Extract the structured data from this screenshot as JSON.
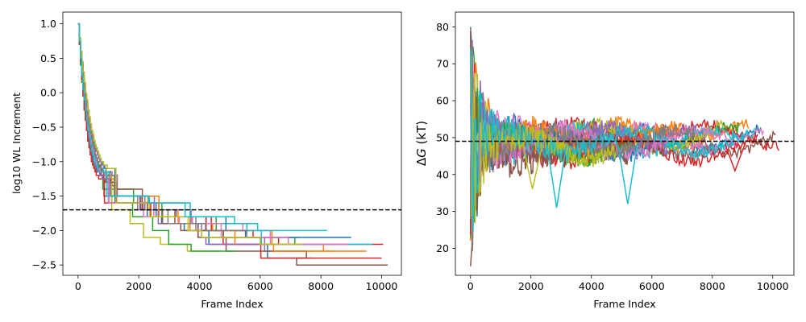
{
  "chart_data": [
    {
      "type": "line",
      "title": "",
      "xlabel": "Frame Index",
      "ylabel": "log10 WL Increment",
      "xlim": [
        -500,
        10650
      ],
      "ylim": [
        -2.65,
        1.17
      ],
      "xticks": [
        0,
        2000,
        4000,
        6000,
        8000,
        10000
      ],
      "xtick_labels": [
        "0",
        "2000",
        "4000",
        "6000",
        "8000",
        "10000"
      ],
      "yticks": [
        1.0,
        0.5,
        0.0,
        -0.5,
        -1.0,
        -1.5,
        -2.0,
        -2.5
      ],
      "ytick_labels": [
        "1.0",
        "0.5",
        "0.0",
        "−0.5",
        "−1.0",
        "−1.5",
        "−2.0",
        "−2.5"
      ],
      "reference_line": {
        "y": -1.7,
        "style": "dashed",
        "color": "#000000"
      },
      "colors": [
        "#1f77b4",
        "#ff7f0e",
        "#2ca02c",
        "#d62728",
        "#9467bd",
        "#8c564b",
        "#e377c2",
        "#7f7f7f",
        "#bcbd22",
        "#17becf"
      ],
      "series_note": "approx. 20 step-decay series (one per color cycle) that drop from 1.0 toward about -1.2 by frame 1000 and stair-step down to between -1.9 and -2.5 by frames 4500-10200",
      "series": [
        {
          "color": "#1f77b4",
          "end_x": 7700,
          "end_y": -2.4,
          "steps": [
            -1.6,
            -1.8,
            -1.9,
            -2.0,
            -2.2,
            -2.4
          ]
        },
        {
          "color": "#ff7f0e",
          "end_x": 9500,
          "end_y": -2.3,
          "steps": [
            -1.5,
            -1.7,
            -1.9,
            -2.0,
            -2.2,
            -2.3
          ]
        },
        {
          "color": "#2ca02c",
          "end_x": 8600,
          "end_y": -2.2,
          "steps": [
            -1.4,
            -1.6,
            -1.8,
            -2.0,
            -2.1,
            -2.2
          ]
        },
        {
          "color": "#d62728",
          "end_x": 10050,
          "end_y": -2.2,
          "steps": [
            -1.6,
            -1.8,
            -2.0,
            -2.1,
            -2.2
          ]
        },
        {
          "color": "#9467bd",
          "end_x": 7500,
          "end_y": -2.3,
          "steps": [
            -1.5,
            -1.7,
            -1.9,
            -2.1,
            -2.3
          ]
        },
        {
          "color": "#8c564b",
          "end_x": 10200,
          "end_y": -2.5,
          "steps": [
            -1.5,
            -1.7,
            -1.9,
            -2.1,
            -2.3,
            -2.4,
            -2.5
          ]
        },
        {
          "color": "#e377c2",
          "end_x": 9300,
          "end_y": -2.2,
          "steps": [
            -1.6,
            -1.8,
            -1.9,
            -2.0,
            -2.2
          ]
        },
        {
          "color": "#7f7f7f",
          "end_x": 7300,
          "end_y": -2.1,
          "steps": [
            -1.5,
            -1.7,
            -1.8,
            -2.0,
            -2.1
          ]
        },
        {
          "color": "#bcbd22",
          "end_x": 4700,
          "end_y": -2.3,
          "steps": [
            -1.7,
            -1.9,
            -2.1,
            -2.2,
            -2.3
          ]
        },
        {
          "color": "#17becf",
          "end_x": 9700,
          "end_y": -2.2,
          "steps": [
            -1.5,
            -1.6,
            -1.9,
            -2.0,
            -2.2
          ]
        },
        {
          "color": "#1f77b4",
          "end_x": 9000,
          "end_y": -2.1,
          "steps": [
            -1.6,
            -1.8,
            -2.0,
            -2.1
          ]
        },
        {
          "color": "#ff7f0e",
          "end_x": 8400,
          "end_y": -2.3,
          "steps": [
            -1.5,
            -1.8,
            -2.0,
            -2.2,
            -2.3
          ]
        },
        {
          "color": "#2ca02c",
          "end_x": 5200,
          "end_y": -2.3,
          "steps": [
            -1.6,
            -1.8,
            -2.0,
            -2.2,
            -2.3
          ]
        },
        {
          "color": "#d62728",
          "end_x": 10000,
          "end_y": -2.4,
          "steps": [
            -1.6,
            -1.8,
            -2.0,
            -2.2,
            -2.4
          ]
        },
        {
          "color": "#9467bd",
          "end_x": 6600,
          "end_y": -2.2,
          "steps": [
            -1.5,
            -1.7,
            -1.9,
            -2.1,
            -2.2
          ]
        },
        {
          "color": "#8c564b",
          "end_x": 6000,
          "end_y": -2.1,
          "steps": [
            -1.4,
            -1.7,
            -1.9,
            -2.0,
            -2.1
          ]
        },
        {
          "color": "#e377c2",
          "end_x": 8900,
          "end_y": -2.2,
          "steps": [
            -1.6,
            -1.8,
            -1.9,
            -2.1,
            -2.2
          ]
        },
        {
          "color": "#7f7f7f",
          "end_x": 5600,
          "end_y": -2.0,
          "steps": [
            -1.5,
            -1.7,
            -1.9,
            -2.0
          ]
        },
        {
          "color": "#bcbd22",
          "end_x": 7400,
          "end_y": -2.2,
          "steps": [
            -1.6,
            -1.8,
            -2.0,
            -2.1,
            -2.2
          ]
        },
        {
          "color": "#17becf",
          "end_x": 8200,
          "end_y": -2.0,
          "steps": [
            -1.5,
            -1.6,
            -1.8,
            -1.9,
            -2.0
          ]
        }
      ]
    },
    {
      "type": "line",
      "title": "",
      "xlabel": "Frame Index",
      "ylabel_prefix": "Δ",
      "ylabel_symbol": "G",
      "ylabel_suffix": " (kT)",
      "xlim": [
        -500,
        10700
      ],
      "ylim": [
        12.7,
        84.0
      ],
      "xticks": [
        0,
        2000,
        4000,
        6000,
        8000,
        10000
      ],
      "xtick_labels": [
        "0",
        "2000",
        "4000",
        "6000",
        "8000",
        "10000"
      ],
      "yticks": [
        80,
        70,
        60,
        50,
        40,
        30,
        20
      ],
      "ytick_labels": [
        "80",
        "70",
        "60",
        "50",
        "40",
        "30",
        "20"
      ],
      "reference_line": {
        "y": 49,
        "style": "dashed",
        "color": "#000000"
      },
      "colors": [
        "#1f77b4",
        "#ff7f0e",
        "#2ca02c",
        "#d62728",
        "#9467bd",
        "#8c564b",
        "#e377c2",
        "#7f7f7f",
        "#bcbd22",
        "#17becf"
      ],
      "series_note": "approx. 20 noisy convergence traces; wide scatter 15-82 near frame 0, settling to 44-55 and converging near 49-50 by frames 8000-10200",
      "features": [
        {
          "color": "#17becf",
          "x": 2850,
          "y": 31,
          "description": "dip"
        },
        {
          "color": "#17becf",
          "x": 5200,
          "y": 32,
          "description": "dip"
        },
        {
          "color": "#d62728",
          "x": 8750,
          "y": 41,
          "description": "dip"
        },
        {
          "color": "#bcbd22",
          "x": 2050,
          "y": 36,
          "description": "dip"
        }
      ],
      "series": [
        {
          "color": "#1f77b4",
          "end_x": 9600,
          "end_y": 50
        },
        {
          "color": "#ff7f0e",
          "end_x": 9200,
          "end_y": 51
        },
        {
          "color": "#2ca02c",
          "end_x": 8900,
          "end_y": 50
        },
        {
          "color": "#d62728",
          "end_x": 10200,
          "end_y": 51
        },
        {
          "color": "#9467bd",
          "end_x": 7800,
          "end_y": 49
        },
        {
          "color": "#8c564b",
          "end_x": 10100,
          "end_y": 49
        },
        {
          "color": "#e377c2",
          "end_x": 9700,
          "end_y": 50
        },
        {
          "color": "#7f7f7f",
          "end_x": 8100,
          "end_y": 48
        },
        {
          "color": "#bcbd22",
          "end_x": 8400,
          "end_y": 51
        },
        {
          "color": "#17becf",
          "end_x": 9100,
          "end_y": 49
        },
        {
          "color": "#1f77b4",
          "end_x": 6000,
          "end_y": 48
        },
        {
          "color": "#ff7f0e",
          "end_x": 7000,
          "end_y": 50
        },
        {
          "color": "#2ca02c",
          "end_x": 5500,
          "end_y": 47
        },
        {
          "color": "#d62728",
          "end_x": 9500,
          "end_y": 46
        },
        {
          "color": "#9467bd",
          "end_x": 6500,
          "end_y": 50
        },
        {
          "color": "#8c564b",
          "end_x": 5200,
          "end_y": 45
        },
        {
          "color": "#e377c2",
          "end_x": 8800,
          "end_y": 49
        },
        {
          "color": "#7f7f7f",
          "end_x": 7400,
          "end_y": 49
        },
        {
          "color": "#bcbd22",
          "end_x": 4800,
          "end_y": 47
        },
        {
          "color": "#17becf",
          "end_x": 9400,
          "end_y": 49
        }
      ]
    }
  ]
}
